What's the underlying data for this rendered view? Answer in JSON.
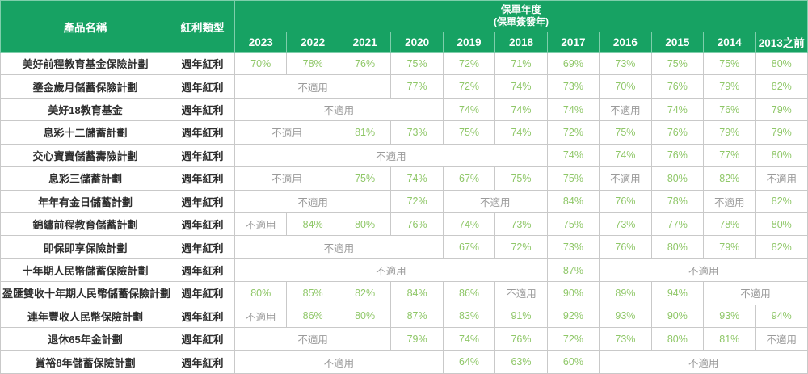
{
  "colors": {
    "header_bg": "#17a263",
    "header_text": "#ffffff",
    "value_text": "#8fc768",
    "na_text": "#9b9b9b",
    "name_text": "#2e2e2e",
    "border": "#c9c9c9",
    "header_divider": "#7fceab",
    "row_bg": "#ffffff"
  },
  "table": {
    "na_label": "不適用",
    "header": {
      "product_col": "產品名稱",
      "type_col": "紅利類型",
      "year_group_title": "保單年度",
      "year_group_subtitle": "(保單簽發年)",
      "years": [
        "2023",
        "2022",
        "2021",
        "2020",
        "2019",
        "2018",
        "2017",
        "2016",
        "2015",
        "2014",
        "2013之前"
      ]
    },
    "rows": [
      {
        "name": "美好前程教育基金保險計劃",
        "type": "週年紅利",
        "cells": [
          {
            "t": "70%",
            "s": 1
          },
          {
            "t": "78%",
            "s": 1
          },
          {
            "t": "76%",
            "s": 1
          },
          {
            "t": "75%",
            "s": 1
          },
          {
            "t": "72%",
            "s": 1
          },
          {
            "t": "71%",
            "s": 1
          },
          {
            "t": "69%",
            "s": 1
          },
          {
            "t": "73%",
            "s": 1
          },
          {
            "t": "75%",
            "s": 1
          },
          {
            "t": "75%",
            "s": 1
          },
          {
            "t": "80%",
            "s": 1
          }
        ]
      },
      {
        "name": "鎏金歲月儲蓄保險計劃",
        "type": "週年紅利",
        "cells": [
          {
            "t": "不適用",
            "s": 3
          },
          {
            "t": "77%",
            "s": 1
          },
          {
            "t": "72%",
            "s": 1
          },
          {
            "t": "74%",
            "s": 1
          },
          {
            "t": "73%",
            "s": 1
          },
          {
            "t": "70%",
            "s": 1
          },
          {
            "t": "76%",
            "s": 1
          },
          {
            "t": "79%",
            "s": 1
          },
          {
            "t": "82%",
            "s": 1
          }
        ]
      },
      {
        "name": "美好18教育基金",
        "type": "週年紅利",
        "cells": [
          {
            "t": "不適用",
            "s": 4
          },
          {
            "t": "74%",
            "s": 1
          },
          {
            "t": "74%",
            "s": 1
          },
          {
            "t": "74%",
            "s": 1
          },
          {
            "t": "不適用",
            "s": 1
          },
          {
            "t": "74%",
            "s": 1
          },
          {
            "t": "76%",
            "s": 1
          },
          {
            "t": "79%",
            "s": 1
          }
        ]
      },
      {
        "name": "息彩十二儲蓄計劃",
        "type": "週年紅利",
        "cells": [
          {
            "t": "不適用",
            "s": 2
          },
          {
            "t": "81%",
            "s": 1
          },
          {
            "t": "73%",
            "s": 1
          },
          {
            "t": "75%",
            "s": 1
          },
          {
            "t": "74%",
            "s": 1
          },
          {
            "t": "72%",
            "s": 1
          },
          {
            "t": "75%",
            "s": 1
          },
          {
            "t": "76%",
            "s": 1
          },
          {
            "t": "79%",
            "s": 1
          },
          {
            "t": "79%",
            "s": 1
          }
        ]
      },
      {
        "name": "交心寶寶儲蓄壽險計劃",
        "type": "週年紅利",
        "cells": [
          {
            "t": "不適用",
            "s": 6
          },
          {
            "t": "74%",
            "s": 1
          },
          {
            "t": "74%",
            "s": 1
          },
          {
            "t": "76%",
            "s": 1
          },
          {
            "t": "77%",
            "s": 1
          },
          {
            "t": "80%",
            "s": 1
          }
        ]
      },
      {
        "name": "息彩三儲蓄計劃",
        "type": "週年紅利",
        "cells": [
          {
            "t": "不適用",
            "s": 2
          },
          {
            "t": "75%",
            "s": 1
          },
          {
            "t": "74%",
            "s": 1
          },
          {
            "t": "67%",
            "s": 1
          },
          {
            "t": "75%",
            "s": 1
          },
          {
            "t": "75%",
            "s": 1
          },
          {
            "t": "不適用",
            "s": 1
          },
          {
            "t": "80%",
            "s": 1
          },
          {
            "t": "82%",
            "s": 1
          },
          {
            "t": "不適用",
            "s": 1
          }
        ]
      },
      {
        "name": "年年有金日儲蓄計劃",
        "type": "週年紅利",
        "cells": [
          {
            "t": "不適用",
            "s": 3
          },
          {
            "t": "72%",
            "s": 1
          },
          {
            "t": "不適用",
            "s": 2
          },
          {
            "t": "84%",
            "s": 1
          },
          {
            "t": "76%",
            "s": 1
          },
          {
            "t": "78%",
            "s": 1
          },
          {
            "t": "不適用",
            "s": 1
          },
          {
            "t": "82%",
            "s": 1
          }
        ]
      },
      {
        "name": "錦繡前程教育儲蓄計劃",
        "type": "週年紅利",
        "cells": [
          {
            "t": "不適用",
            "s": 1
          },
          {
            "t": "84%",
            "s": 1
          },
          {
            "t": "80%",
            "s": 1
          },
          {
            "t": "76%",
            "s": 1
          },
          {
            "t": "74%",
            "s": 1
          },
          {
            "t": "73%",
            "s": 1
          },
          {
            "t": "75%",
            "s": 1
          },
          {
            "t": "73%",
            "s": 1
          },
          {
            "t": "77%",
            "s": 1
          },
          {
            "t": "78%",
            "s": 1
          },
          {
            "t": "80%",
            "s": 1
          }
        ]
      },
      {
        "name": "即保即享保險計劃",
        "type": "週年紅利",
        "cells": [
          {
            "t": "不適用",
            "s": 4
          },
          {
            "t": "67%",
            "s": 1
          },
          {
            "t": "72%",
            "s": 1
          },
          {
            "t": "73%",
            "s": 1
          },
          {
            "t": "76%",
            "s": 1
          },
          {
            "t": "80%",
            "s": 1
          },
          {
            "t": "79%",
            "s": 1
          },
          {
            "t": "82%",
            "s": 1
          }
        ]
      },
      {
        "name": "十年期人民幣儲蓄保險計劃",
        "type": "週年紅利",
        "cells": [
          {
            "t": "不適用",
            "s": 6
          },
          {
            "t": "87%",
            "s": 1
          },
          {
            "t": "不適用",
            "s": 4
          }
        ]
      },
      {
        "name": "盈匯雙收十年期人民幣儲蓄保險計劃",
        "type": "週年紅利",
        "cells": [
          {
            "t": "80%",
            "s": 1
          },
          {
            "t": "85%",
            "s": 1
          },
          {
            "t": "82%",
            "s": 1
          },
          {
            "t": "84%",
            "s": 1
          },
          {
            "t": "86%",
            "s": 1
          },
          {
            "t": "不適用",
            "s": 1
          },
          {
            "t": "90%",
            "s": 1
          },
          {
            "t": "89%",
            "s": 1
          },
          {
            "t": "94%",
            "s": 1
          },
          {
            "t": "不適用",
            "s": 2
          }
        ]
      },
      {
        "name": "連年豐收人民幣保險計劃",
        "type": "週年紅利",
        "cells": [
          {
            "t": "不適用",
            "s": 1
          },
          {
            "t": "86%",
            "s": 1
          },
          {
            "t": "80%",
            "s": 1
          },
          {
            "t": "87%",
            "s": 1
          },
          {
            "t": "83%",
            "s": 1
          },
          {
            "t": "91%",
            "s": 1
          },
          {
            "t": "92%",
            "s": 1
          },
          {
            "t": "93%",
            "s": 1
          },
          {
            "t": "90%",
            "s": 1
          },
          {
            "t": "93%",
            "s": 1
          },
          {
            "t": "94%",
            "s": 1
          }
        ]
      },
      {
        "name": "退休65年金計劃",
        "type": "週年紅利",
        "cells": [
          {
            "t": "不適用",
            "s": 3
          },
          {
            "t": "79%",
            "s": 1
          },
          {
            "t": "74%",
            "s": 1
          },
          {
            "t": "76%",
            "s": 1
          },
          {
            "t": "72%",
            "s": 1
          },
          {
            "t": "73%",
            "s": 1
          },
          {
            "t": "80%",
            "s": 1
          },
          {
            "t": "81%",
            "s": 1
          },
          {
            "t": "不適用",
            "s": 1
          }
        ]
      },
      {
        "name": "賞裕8年儲蓄保險計劃",
        "type": "週年紅利",
        "cells": [
          {
            "t": "不適用",
            "s": 4
          },
          {
            "t": "64%",
            "s": 1
          },
          {
            "t": "63%",
            "s": 1
          },
          {
            "t": "60%",
            "s": 1
          },
          {
            "t": "不適用",
            "s": 4
          }
        ]
      }
    ]
  },
  "chart_data": {
    "type": "table",
    "title": "保單年度 (保單簽發年) 紅利實現率",
    "columns": [
      "產品名稱",
      "紅利類型",
      "2023",
      "2022",
      "2021",
      "2020",
      "2019",
      "2018",
      "2017",
      "2016",
      "2015",
      "2014",
      "2013之前"
    ],
    "rows": [
      [
        "美好前程教育基金保險計劃",
        "週年紅利",
        "70%",
        "78%",
        "76%",
        "75%",
        "72%",
        "71%",
        "69%",
        "73%",
        "75%",
        "75%",
        "80%"
      ],
      [
        "鎏金歲月儲蓄保險計劃",
        "週年紅利",
        "不適用",
        "不適用",
        "不適用",
        "77%",
        "72%",
        "74%",
        "73%",
        "70%",
        "76%",
        "79%",
        "82%"
      ],
      [
        "美好18教育基金",
        "週年紅利",
        "不適用",
        "不適用",
        "不適用",
        "不適用",
        "74%",
        "74%",
        "74%",
        "不適用",
        "74%",
        "76%",
        "79%"
      ],
      [
        "息彩十二儲蓄計劃",
        "週年紅利",
        "不適用",
        "不適用",
        "81%",
        "73%",
        "75%",
        "74%",
        "72%",
        "75%",
        "76%",
        "79%",
        "79%"
      ],
      [
        "交心寶寶儲蓄壽險計劃",
        "週年紅利",
        "不適用",
        "不適用",
        "不適用",
        "不適用",
        "不適用",
        "不適用",
        "74%",
        "74%",
        "76%",
        "77%",
        "80%"
      ],
      [
        "息彩三儲蓄計劃",
        "週年紅利",
        "不適用",
        "不適用",
        "75%",
        "74%",
        "67%",
        "75%",
        "75%",
        "不適用",
        "80%",
        "82%",
        "不適用"
      ],
      [
        "年年有金日儲蓄計劃",
        "週年紅利",
        "不適用",
        "不適用",
        "不適用",
        "72%",
        "不適用",
        "不適用",
        "84%",
        "76%",
        "78%",
        "不適用",
        "82%"
      ],
      [
        "錦繡前程教育儲蓄計劃",
        "週年紅利",
        "不適用",
        "84%",
        "80%",
        "76%",
        "74%",
        "73%",
        "75%",
        "73%",
        "77%",
        "78%",
        "80%"
      ],
      [
        "即保即享保險計劃",
        "週年紅利",
        "不適用",
        "不適用",
        "不適用",
        "不適用",
        "67%",
        "72%",
        "73%",
        "76%",
        "80%",
        "79%",
        "82%"
      ],
      [
        "十年期人民幣儲蓄保險計劃",
        "週年紅利",
        "不適用",
        "不適用",
        "不適用",
        "不適用",
        "不適用",
        "不適用",
        "87%",
        "不適用",
        "不適用",
        "不適用",
        "不適用"
      ],
      [
        "盈匯雙收十年期人民幣儲蓄保險計劃",
        "週年紅利",
        "80%",
        "85%",
        "82%",
        "84%",
        "86%",
        "不適用",
        "90%",
        "89%",
        "94%",
        "不適用",
        "不適用"
      ],
      [
        "連年豐收人民幣保險計劃",
        "週年紅利",
        "不適用",
        "86%",
        "80%",
        "87%",
        "83%",
        "91%",
        "92%",
        "93%",
        "90%",
        "93%",
        "94%"
      ],
      [
        "退休65年金計劃",
        "週年紅利",
        "不適用",
        "不適用",
        "不適用",
        "79%",
        "74%",
        "76%",
        "72%",
        "73%",
        "80%",
        "81%",
        "不適用"
      ],
      [
        "賞裕8年儲蓄保險計劃",
        "週年紅利",
        "不適用",
        "不適用",
        "不適用",
        "不適用",
        "64%",
        "63%",
        "60%",
        "不適用",
        "不適用",
        "不適用",
        "不適用"
      ]
    ]
  }
}
